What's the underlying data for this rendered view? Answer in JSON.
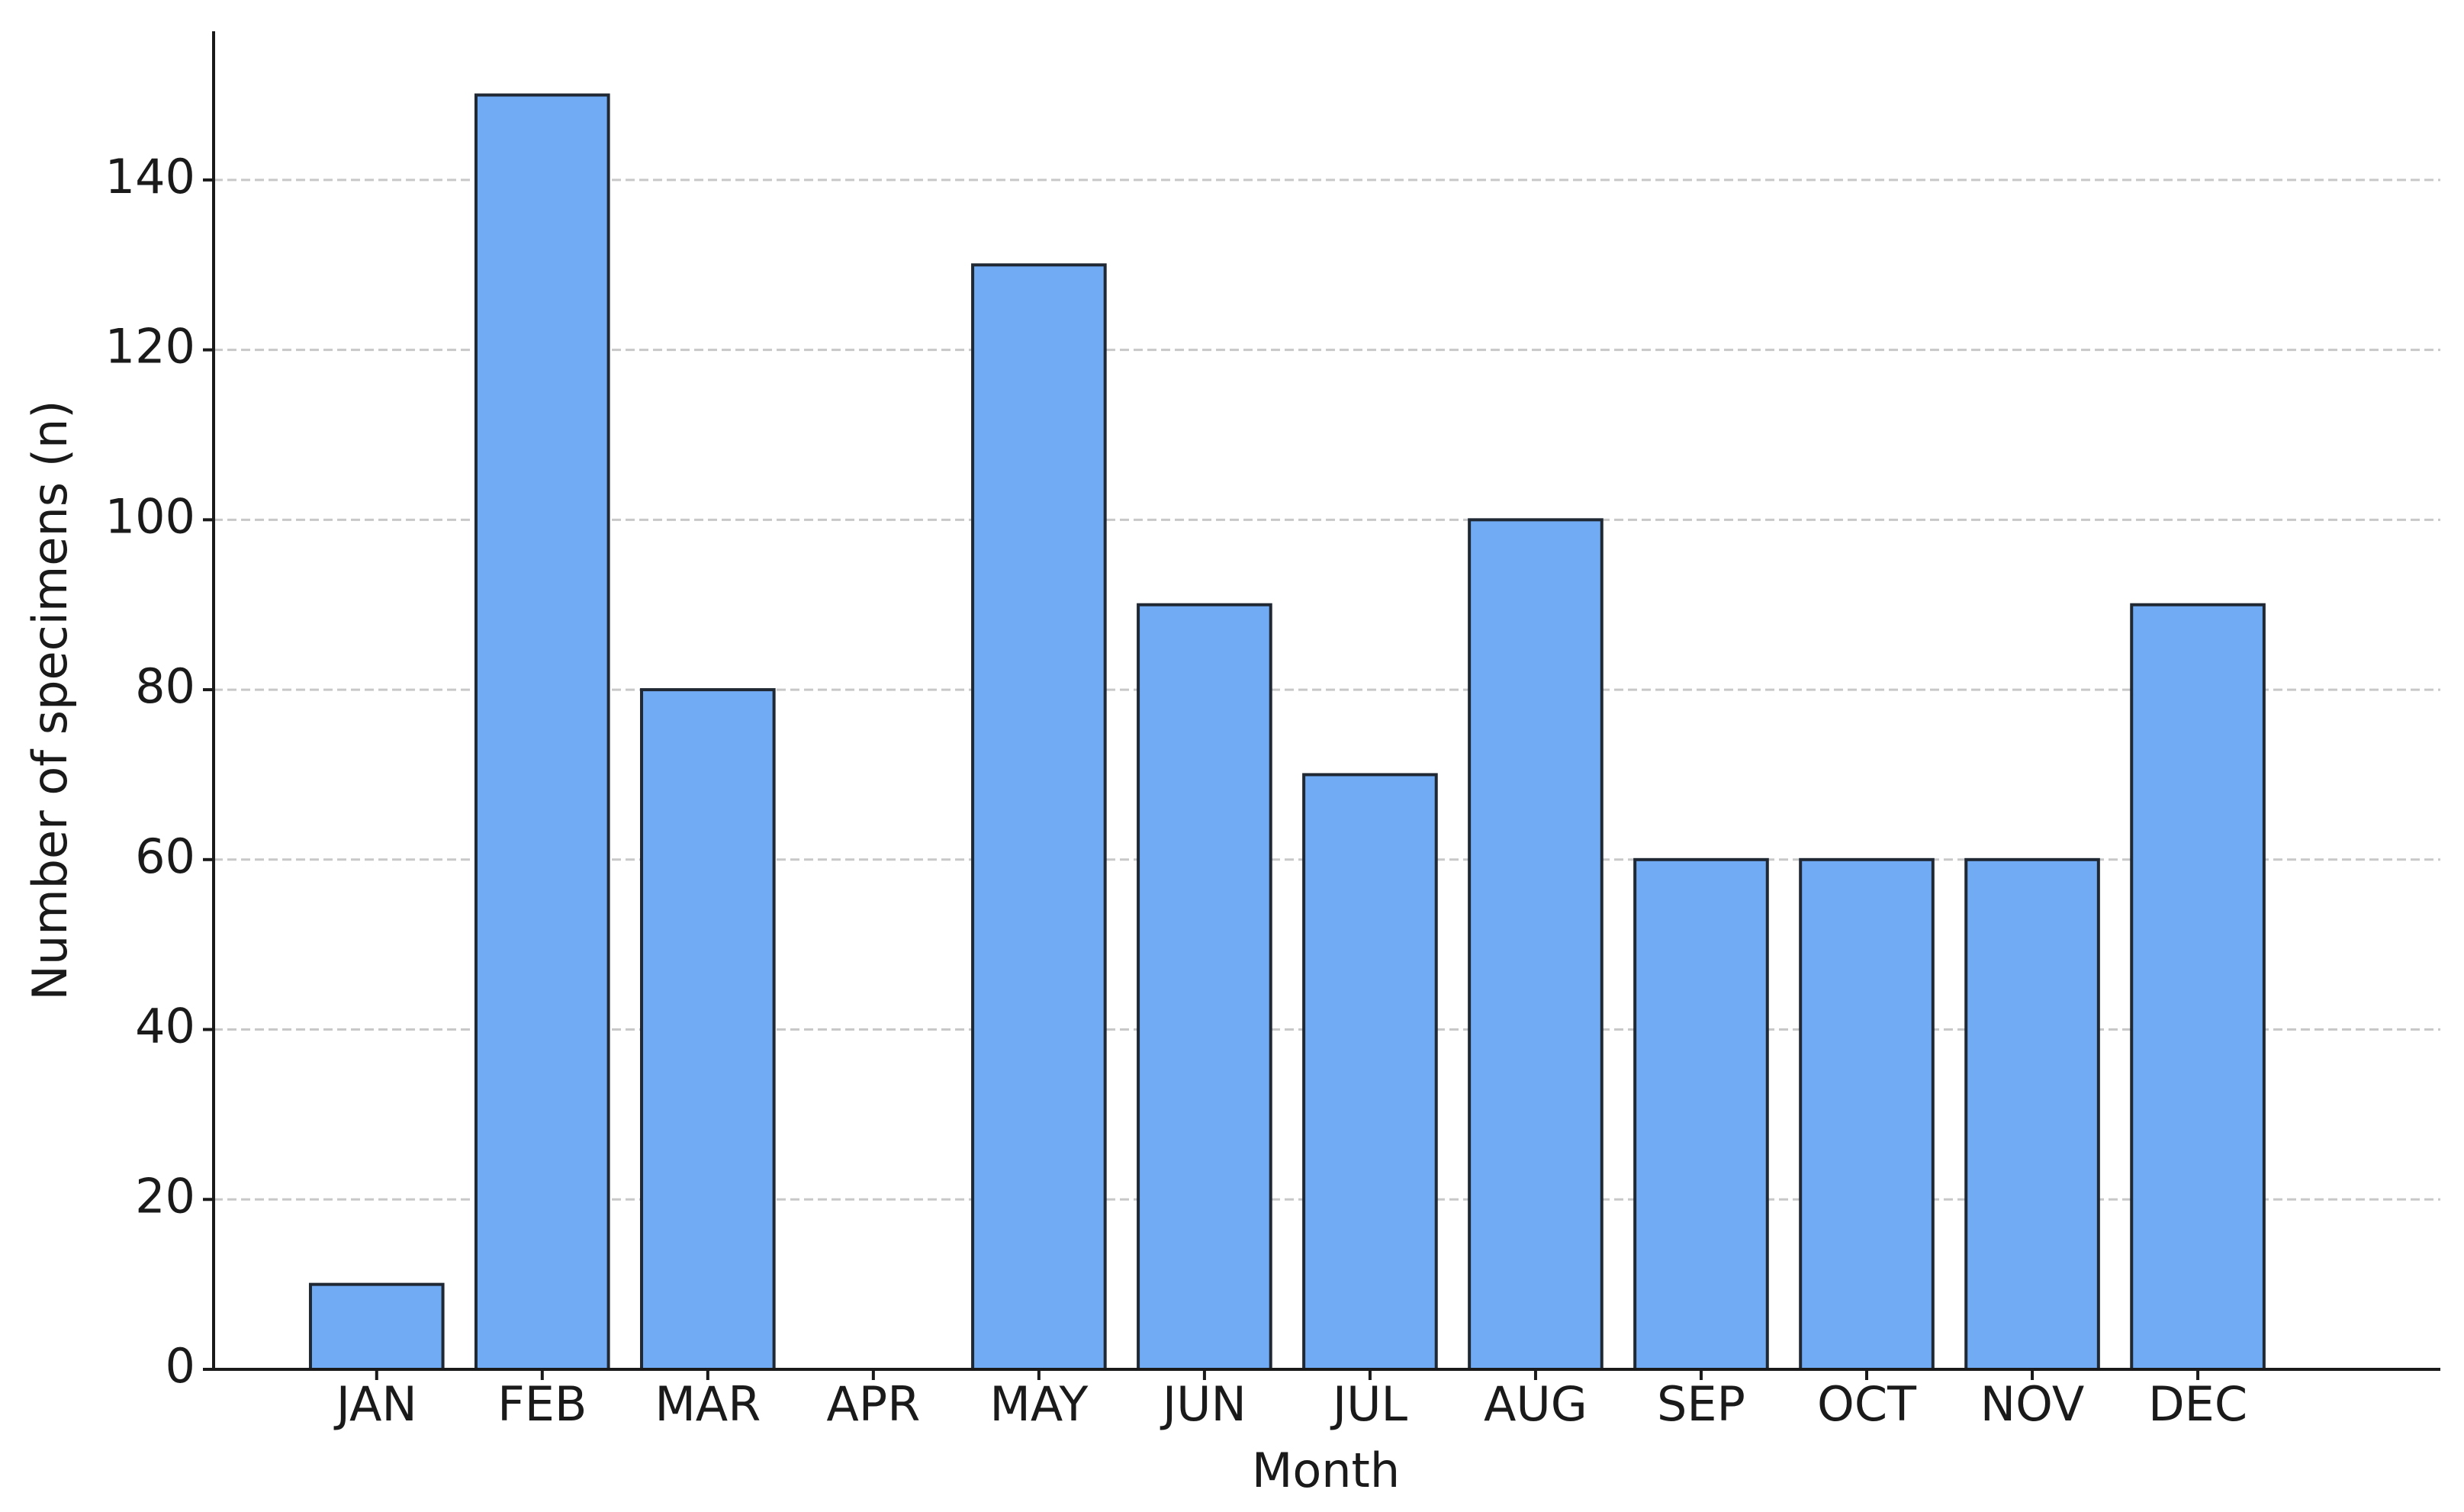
{
  "chart_data": {
    "type": "bar",
    "x_label": "Month",
    "y_label": "Number of specimens (n)",
    "categories": [
      "JAN",
      "FEB",
      "MAR",
      "APR",
      "MAY",
      "JUN",
      "JUL",
      "AUG",
      "SEP",
      "OCT",
      "NOV",
      "DEC"
    ],
    "values": [
      10,
      150,
      80,
      0,
      130,
      90,
      70,
      100,
      60,
      60,
      60,
      90
    ],
    "color": "#70abf3",
    "ylim": [
      0,
      157.5
    ],
    "yticks": [
      0,
      20,
      40,
      60,
      80,
      100,
      120,
      140
    ],
    "grid": true
  }
}
